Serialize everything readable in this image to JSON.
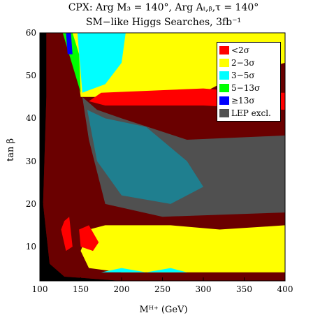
{
  "chart_data": {
    "type": "heatmap",
    "title": "CPX:  Arg M₃ = 140°,  Arg Aₜ,ᵦ,τ = 140°",
    "subtitle": "SM−like Higgs Searches, 3fb⁻¹",
    "xlabel": "Mᴴ⁺ (GeV)",
    "ylabel": "tan β",
    "xlim": [
      100,
      400
    ],
    "ylim": [
      2,
      60
    ],
    "x_ticks": [
      "100",
      "150",
      "200",
      "250",
      "300",
      "350",
      "400"
    ],
    "y_ticks": [
      "10",
      "20",
      "30",
      "40",
      "50",
      "60"
    ],
    "legend_position": "top-right",
    "legend": [
      {
        "label": "<2σ",
        "color": "#ff0000"
      },
      {
        "label": "2−3σ",
        "color": "#ffff00"
      },
      {
        "label": "3−5σ",
        "color": "#00ffff"
      },
      {
        "label": "5−13σ",
        "color": "#00ff00"
      },
      {
        "label": "≥13σ",
        "color": "#0000ff"
      },
      {
        "label": "LEP excl.",
        "color": "#505050"
      }
    ],
    "regions": [
      {
        "name": "LEP excl. low-mass corner",
        "color": "#000000",
        "points": [
          [
            100,
            2
          ],
          [
            100,
            60
          ],
          [
            108,
            60
          ],
          [
            108,
            45
          ],
          [
            104,
            20
          ],
          [
            112,
            6
          ],
          [
            130,
            3
          ],
          [
            200,
            2
          ]
        ]
      },
      {
        "name": "LEP excl.",
        "color": "#6a0000",
        "points": [
          [
            108,
            60
          ],
          [
            108,
            45
          ],
          [
            104,
            20
          ],
          [
            112,
            6
          ],
          [
            130,
            3
          ],
          [
            200,
            2
          ],
          [
            400,
            2
          ],
          [
            400,
            60
          ]
        ]
      },
      {
        "name": "2−3σ fan",
        "color": "#ffff00",
        "points": [
          [
            150,
            45
          ],
          [
            140,
            60
          ],
          [
            400,
            60
          ],
          [
            400,
            53
          ],
          [
            340,
            50
          ],
          [
            300,
            46
          ],
          [
            250,
            45
          ]
        ]
      },
      {
        "name": "3−5σ fan",
        "color": "#00ffff",
        "points": [
          [
            152,
            46
          ],
          [
            146,
            60
          ],
          [
            205,
            60
          ],
          [
            200,
            53
          ],
          [
            180,
            48
          ]
        ]
      },
      {
        "name": "5−13σ",
        "color": "#00ff00",
        "points": [
          [
            150,
            46
          ],
          [
            128,
            60
          ],
          [
            140,
            60
          ],
          [
            148,
            55
          ]
        ]
      },
      {
        "name": "≥13σ",
        "color": "#0000ff",
        "points": [
          [
            132,
            60
          ],
          [
            138,
            60
          ],
          [
            140,
            55
          ],
          [
            134,
            55
          ]
        ]
      },
      {
        "name": "<2σ upper band",
        "color": "#ff0000",
        "points": [
          [
            160,
            44
          ],
          [
            175,
            46
          ],
          [
            300,
            47
          ],
          [
            360,
            46
          ],
          [
            400,
            46
          ],
          [
            400,
            42
          ],
          [
            300,
            43
          ],
          [
            220,
            43
          ],
          [
            180,
            43
          ]
        ]
      },
      {
        "name": "LEP excl. overlay",
        "color": "#505050",
        "points": [
          [
            152,
            45
          ],
          [
            170,
            42
          ],
          [
            200,
            40
          ],
          [
            280,
            35
          ],
          [
            400,
            36
          ],
          [
            400,
            18
          ],
          [
            250,
            17
          ],
          [
            180,
            20
          ],
          [
            160,
            35
          ]
        ]
      },
      {
        "name": "3−5σ inner",
        "color": "#1f7f8f",
        "points": [
          [
            158,
            42
          ],
          [
            180,
            40
          ],
          [
            230,
            38
          ],
          [
            280,
            30
          ],
          [
            300,
            24
          ],
          [
            260,
            20
          ],
          [
            200,
            22
          ],
          [
            170,
            30
          ]
        ]
      },
      {
        "name": "2−3σ lower band",
        "color": "#ffff00",
        "points": [
          [
            150,
            9
          ],
          [
            160,
            14
          ],
          [
            180,
            15
          ],
          [
            260,
            15
          ],
          [
            320,
            14
          ],
          [
            400,
            15
          ],
          [
            400,
            4
          ],
          [
            300,
            4
          ],
          [
            200,
            4
          ],
          [
            160,
            5
          ]
        ]
      },
      {
        "name": "<2σ lower",
        "color": "#ff0000",
        "points": [
          [
            126,
            14
          ],
          [
            130,
            16
          ],
          [
            136,
            17
          ],
          [
            140,
            10
          ],
          [
            132,
            9
          ]
        ]
      },
      {
        "name": "<2σ lower right",
        "color": "#ff0000",
        "points": [
          [
            148,
            14
          ],
          [
            160,
            15
          ],
          [
            172,
            11
          ],
          [
            165,
            9
          ],
          [
            150,
            10
          ]
        ]
      },
      {
        "name": "3−5σ low",
        "color": "#00ffff",
        "points": [
          [
            175,
            4
          ],
          [
            200,
            5
          ],
          [
            230,
            4
          ],
          [
            260,
            5
          ],
          [
            280,
            4
          ]
        ]
      }
    ]
  }
}
